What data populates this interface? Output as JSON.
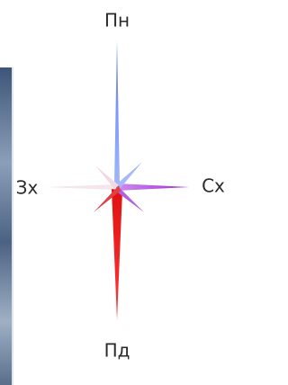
{
  "compass": {
    "north": "Пн",
    "east": "Сх",
    "west": "Зх",
    "south": "Пд"
  }
}
